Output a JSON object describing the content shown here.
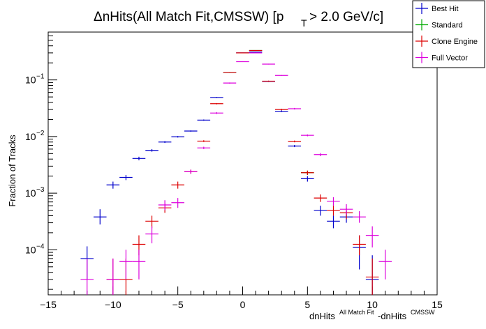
{
  "chart_data": {
    "type": "scatter",
    "title": "ΔnHits(All Match Fit,CMSSW) [p",
    "title_sub": "T",
    "title_tail": " > 2.0 GeV/c]",
    "xlabel": {
      "base1": "dnHits",
      "sup1": "All Match Fit",
      "base2": "-dnHits",
      "sup2": "CMSSW"
    },
    "ylabel": "Fraction of Tracks",
    "xlim": [
      -15,
      15
    ],
    "ylim": [
      1.6e-05,
      0.7
    ],
    "y_scale": "log",
    "grid": false,
    "legend_position": "top-right",
    "x_ticks": [
      "−15",
      "−10",
      "−5",
      "0",
      "5",
      "10",
      "15"
    ],
    "y_ticks": [
      {
        "base": "10",
        "exp": "−1"
      },
      {
        "base": "10",
        "exp": "−2"
      },
      {
        "base": "10",
        "exp": "−3"
      },
      {
        "base": "10",
        "exp": "−4"
      }
    ],
    "series": [
      {
        "name": "Best Hit",
        "color": "#0000cc",
        "points": [
          {
            "x": -12,
            "y": 7e-05,
            "yerr": [
              3e-05,
              0.000115
            ]
          },
          {
            "x": -11,
            "y": 0.00038,
            "yerr": [
              0.00028,
              0.00052
            ]
          },
          {
            "x": -10,
            "y": 0.0014,
            "yerr": [
              0.0012,
              0.0016
            ]
          },
          {
            "x": -9,
            "y": 0.0019,
            "yerr": [
              0.0017,
              0.0021
            ]
          },
          {
            "x": -8,
            "y": 0.0041,
            "yerr": [
              0.0038,
              0.0044
            ]
          },
          {
            "x": -7,
            "y": 0.0057,
            "yerr": [
              0.0054,
              0.006
            ]
          },
          {
            "x": -6,
            "y": 0.008,
            "yerr": [
              0.0077,
              0.0083
            ]
          },
          {
            "x": -5,
            "y": 0.0099,
            "yerr": [
              0.0096,
              0.0102
            ]
          },
          {
            "x": -4,
            "y": 0.0125,
            "yerr": [
              0.0122,
              0.0128
            ]
          },
          {
            "x": -3,
            "y": 0.0195,
            "yerr": [
              0.019,
              0.02
            ]
          },
          {
            "x": -2,
            "y": 0.049,
            "yerr": [
              0.048,
              0.05
            ]
          },
          {
            "x": -1,
            "y": 0.135,
            "yerr": [
              0.133,
              0.137
            ]
          },
          {
            "x": 0,
            "y": 0.3,
            "yerr": [
              0.297,
              0.303
            ]
          },
          {
            "x": 1,
            "y": 0.31,
            "yerr": [
              0.307,
              0.313
            ]
          },
          {
            "x": 2,
            "y": 0.094,
            "yerr": [
              0.092,
              0.096
            ]
          },
          {
            "x": 3,
            "y": 0.028,
            "yerr": [
              0.027,
              0.029
            ]
          },
          {
            "x": 4,
            "y": 0.0068,
            "yerr": [
              0.0065,
              0.0071
            ]
          },
          {
            "x": 5,
            "y": 0.0018,
            "yerr": [
              0.0016,
              0.002
            ]
          },
          {
            "x": 6,
            "y": 0.0005,
            "yerr": [
              0.0004,
              0.0006
            ]
          },
          {
            "x": 7,
            "y": 0.00032,
            "yerr": [
              0.00024,
              0.0004
            ]
          },
          {
            "x": 8,
            "y": 0.00038,
            "yerr": [
              0.0003,
              0.00048
            ]
          },
          {
            "x": 9,
            "y": 0.00011,
            "yerr": [
              4.5e-05,
              0.00018
            ]
          },
          {
            "x": 10,
            "y": 3e-05,
            "yerr": [
              1.6e-05,
              8e-05
            ]
          }
        ]
      },
      {
        "name": "Standard",
        "color": "#00aa00",
        "points": [
          {
            "x": -1,
            "y": 0.135,
            "yerr": [
              0.133,
              0.137
            ]
          },
          {
            "x": 1,
            "y": 0.33,
            "yerr": [
              0.327,
              0.333
            ]
          },
          {
            "x": 5,
            "y": 0.0023,
            "yerr": [
              0.0021,
              0.0025
            ]
          }
        ]
      },
      {
        "name": "Clone Engine",
        "color": "#dd0000",
        "points": [
          {
            "x": -10,
            "y": 3e-05,
            "yerr": [
              1.6e-05,
              7e-05
            ]
          },
          {
            "x": -9,
            "y": 3e-05,
            "yerr": [
              1.6e-05,
              7e-05
            ]
          },
          {
            "x": -8,
            "y": 0.000125,
            "yerr": [
              8e-05,
              0.00018
            ]
          },
          {
            "x": -7,
            "y": 0.00032,
            "yerr": [
              0.00024,
              0.0004
            ]
          },
          {
            "x": -6,
            "y": 0.00055,
            "yerr": [
              0.00045,
              0.00065
            ]
          },
          {
            "x": -5,
            "y": 0.0014,
            "yerr": [
              0.0012,
              0.0016
            ]
          },
          {
            "x": -4,
            "y": 0.0024,
            "yerr": [
              0.0022,
              0.0026
            ]
          },
          {
            "x": -3,
            "y": 0.0083,
            "yerr": [
              0.008,
              0.0086
            ]
          },
          {
            "x": -2,
            "y": 0.038,
            "yerr": [
              0.037,
              0.039
            ]
          },
          {
            "x": -1,
            "y": 0.135,
            "yerr": [
              0.133,
              0.137
            ]
          },
          {
            "x": 0,
            "y": 0.3,
            "yerr": [
              0.297,
              0.303
            ]
          },
          {
            "x": 1,
            "y": 0.33,
            "yerr": [
              0.327,
              0.333
            ]
          },
          {
            "x": 2,
            "y": 0.095,
            "yerr": [
              0.093,
              0.097
            ]
          },
          {
            "x": 3,
            "y": 0.03,
            "yerr": [
              0.029,
              0.031
            ]
          },
          {
            "x": 4,
            "y": 0.0082,
            "yerr": [
              0.0079,
              0.0085
            ]
          },
          {
            "x": 5,
            "y": 0.0023,
            "yerr": [
              0.0021,
              0.0025
            ]
          },
          {
            "x": 6,
            "y": 0.00082,
            "yerr": [
              0.0007,
              0.00095
            ]
          },
          {
            "x": 7,
            "y": 0.0005,
            "yerr": [
              0.0004,
              0.0006
            ]
          },
          {
            "x": 8,
            "y": 0.00045,
            "yerr": [
              0.00035,
              0.00055
            ]
          },
          {
            "x": 9,
            "y": 0.000125,
            "yerr": [
              8e-05,
              0.00018
            ]
          },
          {
            "x": 10,
            "y": 3.3e-05,
            "yerr": [
              1.6e-05,
              7e-05
            ]
          }
        ]
      },
      {
        "name": "Full Vector",
        "color": "#dd00dd",
        "points": [
          {
            "x": -12,
            "y": 3e-05,
            "yerr": [
              1.6e-05,
              7e-05
            ]
          },
          {
            "x": -10,
            "y": 3e-05,
            "yerr": [
              1.6e-05,
              7e-05
            ]
          },
          {
            "x": -9,
            "y": 6.2e-05,
            "yerr": [
              3e-05,
              0.0001
            ]
          },
          {
            "x": -8,
            "y": 6.2e-05,
            "yerr": [
              3e-05,
              0.0001
            ]
          },
          {
            "x": -7,
            "y": 0.00019,
            "yerr": [
              0.00013,
              0.00026
            ]
          },
          {
            "x": -6,
            "y": 0.00062,
            "yerr": [
              0.0005,
              0.00075
            ]
          },
          {
            "x": -5,
            "y": 0.00068,
            "yerr": [
              0.00055,
              0.00082
            ]
          },
          {
            "x": -4,
            "y": 0.0024,
            "yerr": [
              0.0022,
              0.0026
            ]
          },
          {
            "x": -3,
            "y": 0.0063,
            "yerr": [
              0.006,
              0.0066
            ]
          },
          {
            "x": -2,
            "y": 0.026,
            "yerr": [
              0.025,
              0.027
            ]
          },
          {
            "x": -1,
            "y": 0.088,
            "yerr": [
              0.086,
              0.09
            ]
          },
          {
            "x": 0,
            "y": 0.21,
            "yerr": [
              0.207,
              0.213
            ]
          },
          {
            "x": 1,
            "y": 0.3,
            "yerr": [
              0.297,
              0.303
            ]
          },
          {
            "x": 2,
            "y": 0.19,
            "yerr": [
              0.187,
              0.193
            ]
          },
          {
            "x": 3,
            "y": 0.12,
            "yerr": [
              0.118,
              0.122
            ]
          },
          {
            "x": 4,
            "y": 0.031,
            "yerr": [
              0.03,
              0.032
            ]
          },
          {
            "x": 5,
            "y": 0.0105,
            "yerr": [
              0.0101,
              0.0109
            ]
          },
          {
            "x": 6,
            "y": 0.0048,
            "yerr": [
              0.0045,
              0.0051
            ]
          },
          {
            "x": 7,
            "y": 0.00072,
            "yerr": [
              0.0006,
              0.00085
            ]
          },
          {
            "x": 8,
            "y": 0.00052,
            "yerr": [
              0.00042,
              0.00064
            ]
          },
          {
            "x": 9,
            "y": 0.00038,
            "yerr": [
              0.0003,
              0.00048
            ]
          },
          {
            "x": 10,
            "y": 0.00018,
            "yerr": [
              0.00011,
              0.00026
            ]
          },
          {
            "x": 11,
            "y": 6.2e-05,
            "yerr": [
              3e-05,
              0.0001
            ]
          }
        ]
      }
    ]
  }
}
